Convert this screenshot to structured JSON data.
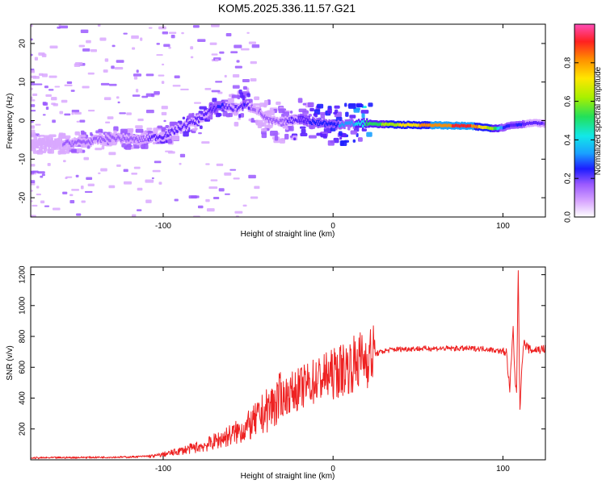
{
  "title": "KOM5.2025.336.11.57.G21",
  "colors": {
    "snr_line": "#ee2222",
    "colormap": [
      "#ffffff",
      "#d9a8ff",
      "#9b59ff",
      "#5a1fff",
      "#1d1dff",
      "#1aa0ff",
      "#12e8e8",
      "#22e05a",
      "#a8f000",
      "#ffe600",
      "#ff8c00",
      "#ff2020",
      "#ff4db8"
    ]
  },
  "chart_data": [
    {
      "type": "heatmap",
      "name": "spectrogram",
      "xlabel": "Height of straight line (km)",
      "ylabel": "Frequency (Hz)",
      "xlim": [
        -178,
        125
      ],
      "ylim": [
        -25,
        25
      ],
      "xticks": [
        -100,
        0,
        100
      ],
      "xtick_labels": [
        "-100",
        "0",
        "100"
      ],
      "yticks": [
        -20,
        -10,
        0,
        10,
        20
      ],
      "ytick_labels": [
        "-20",
        "-10",
        "0",
        "10",
        "20"
      ],
      "colorbar": {
        "label": "Normalized spectral amplitude",
        "range": [
          0,
          1
        ],
        "ticks": [
          0.0,
          0.2,
          0.4,
          0.6,
          0.8
        ],
        "tick_labels": [
          "0.0",
          "0.2",
          "0.4",
          "0.6",
          "0.8"
        ]
      },
      "ridge": {
        "x": [
          -178,
          -160,
          -145,
          -130,
          -115,
          -100,
          -90,
          -80,
          -72,
          -65,
          -58,
          -52,
          -45,
          -38,
          -30,
          -20,
          -10,
          0,
          10,
          20,
          40,
          60,
          80,
          95,
          100,
          105,
          110,
          118,
          125
        ],
        "freq": [
          -6,
          -6,
          -5.5,
          -4.5,
          -5,
          -4,
          -2,
          0,
          2.5,
          4,
          3,
          4,
          3,
          0,
          -0.5,
          0.5,
          -0.5,
          -1,
          -0.8,
          -0.8,
          -1.1,
          -1.2,
          -1.4,
          -2,
          -1.8,
          -1.2,
          -1,
          -0.6,
          -0.8
        ],
        "amplitude": [
          0.05,
          0.12,
          0.2,
          0.15,
          0.2,
          0.22,
          0.25,
          0.25,
          0.28,
          0.3,
          0.2,
          0.3,
          0.12,
          0.15,
          0.18,
          0.28,
          0.3,
          0.35,
          0.42,
          0.55,
          0.72,
          0.85,
          0.9,
          0.62,
          0.38,
          0.28,
          0.3,
          0.25,
          0.2
        ]
      }
    },
    {
      "type": "line",
      "name": "snr",
      "xlabel": "Height of straight line (km)",
      "ylabel": "SNR (v/v)",
      "xlim": [
        -178,
        125
      ],
      "ylim": [
        0,
        1250
      ],
      "xticks": [
        -100,
        0,
        100
      ],
      "xtick_labels": [
        "-100",
        "0",
        "100"
      ],
      "yticks": [
        200,
        400,
        600,
        800,
        1000,
        1200
      ],
      "ytick_labels": [
        "200",
        "400",
        "600",
        "800",
        "1000",
        "1200"
      ],
      "series": [
        {
          "name": "SNR",
          "x": [
            -178,
            -160,
            -140,
            -120,
            -105,
            -95,
            -85,
            -75,
            -65,
            -55,
            -48,
            -42,
            -36,
            -30,
            -24,
            -18,
            -12,
            -6,
            0,
            5,
            10,
            15,
            22,
            30,
            35,
            45,
            60,
            75,
            90,
            98,
            102,
            104,
            106,
            107,
            108,
            109,
            110,
            112,
            116,
            120,
            125
          ],
          "y": [
            12,
            14,
            16,
            18,
            25,
            45,
            70,
            95,
            140,
            185,
            230,
            290,
            350,
            400,
            440,
            470,
            505,
            535,
            555,
            585,
            610,
            640,
            675,
            705,
            715,
            720,
            722,
            722,
            720,
            705,
            700,
            450,
            850,
            550,
            420,
            1230,
            340,
            760,
            710,
            715,
            718
          ]
        }
      ]
    }
  ]
}
